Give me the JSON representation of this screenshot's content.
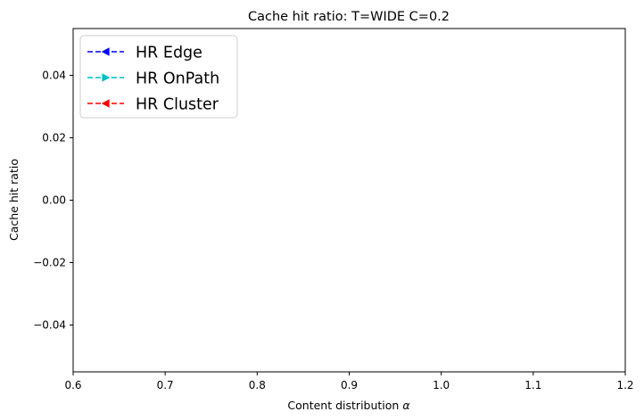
{
  "chart_data": {
    "type": "line",
    "title": "Cache hit ratio: T=WIDE C=0.2",
    "xlabel_prefix": "Content distribution ",
    "xlabel_symbol": "α",
    "ylabel": "Cache hit ratio",
    "xlim": [
      0.6,
      1.2
    ],
    "ylim": [
      -0.055,
      0.055
    ],
    "xticks": [
      0.6,
      0.7,
      0.8,
      0.9,
      1.0,
      1.1,
      1.2
    ],
    "xtick_labels": [
      "0.6",
      "0.7",
      "0.8",
      "0.9",
      "1.0",
      "1.1",
      "1.2"
    ],
    "yticks": [
      -0.04,
      -0.02,
      0.0,
      0.02,
      0.04
    ],
    "ytick_labels": [
      "−0.04",
      "−0.02",
      "0.00",
      "0.02",
      "0.04"
    ],
    "grid": false,
    "legend_position": "top-left",
    "series": [
      {
        "name": "HR Edge",
        "color": "#0000ff",
        "marker": "triangle-left",
        "linestyle": "dashed",
        "x": [],
        "y": []
      },
      {
        "name": "HR OnPath",
        "color": "#00bfbf",
        "marker": "triangle-right",
        "linestyle": "dashed",
        "x": [],
        "y": []
      },
      {
        "name": "HR Cluster",
        "color": "#ff0000",
        "marker": "triangle-left",
        "linestyle": "dashed",
        "x": [],
        "y": []
      }
    ]
  }
}
